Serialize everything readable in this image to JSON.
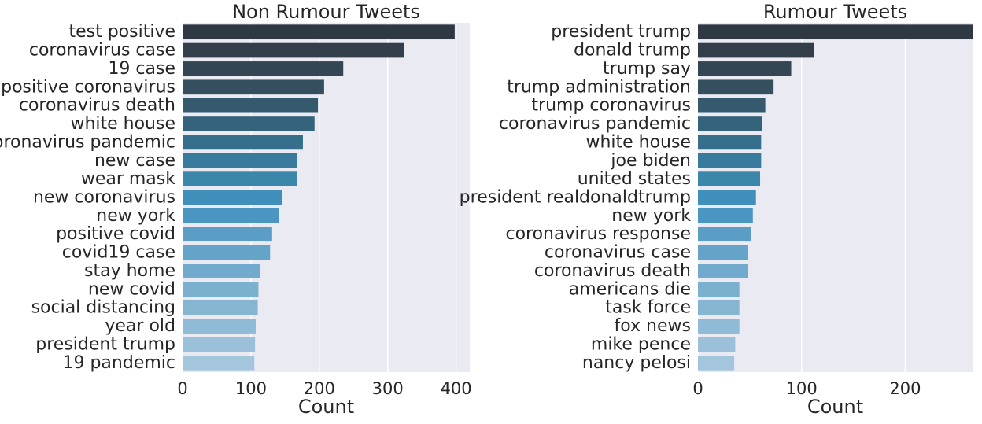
{
  "chart_data": [
    {
      "type": "bar",
      "orientation": "horizontal",
      "title": "Non Rumour Tweets",
      "xlabel": "Count",
      "ylabel": "",
      "xlim": [
        0,
        420
      ],
      "xticks": [
        0,
        100,
        200,
        300,
        400
      ],
      "grid": true,
      "categories": [
        "test positive",
        "coronavirus case",
        "19 case",
        "positive coronavirus",
        "coronavirus death",
        "white house",
        "coronavirus pandemic",
        "new case",
        "wear mask",
        "new coronavirus",
        "new york",
        "positive covid",
        "covid19 case",
        "stay home",
        "new covid",
        "social distancing",
        "year old",
        "president trump",
        "19 pandemic"
      ],
      "values": [
        398,
        324,
        235,
        207,
        198,
        193,
        176,
        168,
        168,
        145,
        141,
        131,
        128,
        113,
        111,
        110,
        107,
        106,
        105
      ],
      "colors": [
        "#2f3944",
        "#323f4b",
        "#344654",
        "#354f5f",
        "#355a6d",
        "#35637b",
        "#356f8c",
        "#387b9c",
        "#3b86ab",
        "#3f8fba",
        "#4a95c1",
        "#5a9ec6",
        "#65a4c9",
        "#71aacc",
        "#7cb0cf",
        "#86b5d2",
        "#90bbd6",
        "#9bc1da",
        "#a4c6dd"
      ]
    },
    {
      "type": "bar",
      "orientation": "horizontal",
      "title": "Rumour Tweets",
      "xlabel": "Count",
      "ylabel": "",
      "xlim": [
        0,
        265
      ],
      "xticks": [
        0,
        100,
        200
      ],
      "grid": true,
      "categories": [
        "president trump",
        "donald trump",
        "trump say",
        "trump administration",
        "trump coronavirus",
        "coronavirus pandemic",
        "white house",
        "joe biden",
        "united states",
        "president realdonaldtrump",
        "new york",
        "coronavirus response",
        "coronavirus case",
        "coronavirus death",
        "americans die",
        "task force",
        "fox news",
        "mike pence",
        "nancy pelosi"
      ],
      "values": [
        265,
        112,
        90,
        73,
        65,
        62,
        61,
        61,
        60,
        56,
        53,
        51,
        48,
        48,
        40,
        40,
        40,
        36,
        35
      ],
      "colors": [
        "#2f3944",
        "#323f4b",
        "#344654",
        "#354f5f",
        "#355a6d",
        "#35637b",
        "#356f8c",
        "#387b9c",
        "#3b86ab",
        "#3f8fba",
        "#4a95c1",
        "#5a9ec6",
        "#65a4c9",
        "#71aacc",
        "#7cb0cf",
        "#86b5d2",
        "#90bbd6",
        "#9bc1da",
        "#a4c6dd"
      ]
    }
  ]
}
